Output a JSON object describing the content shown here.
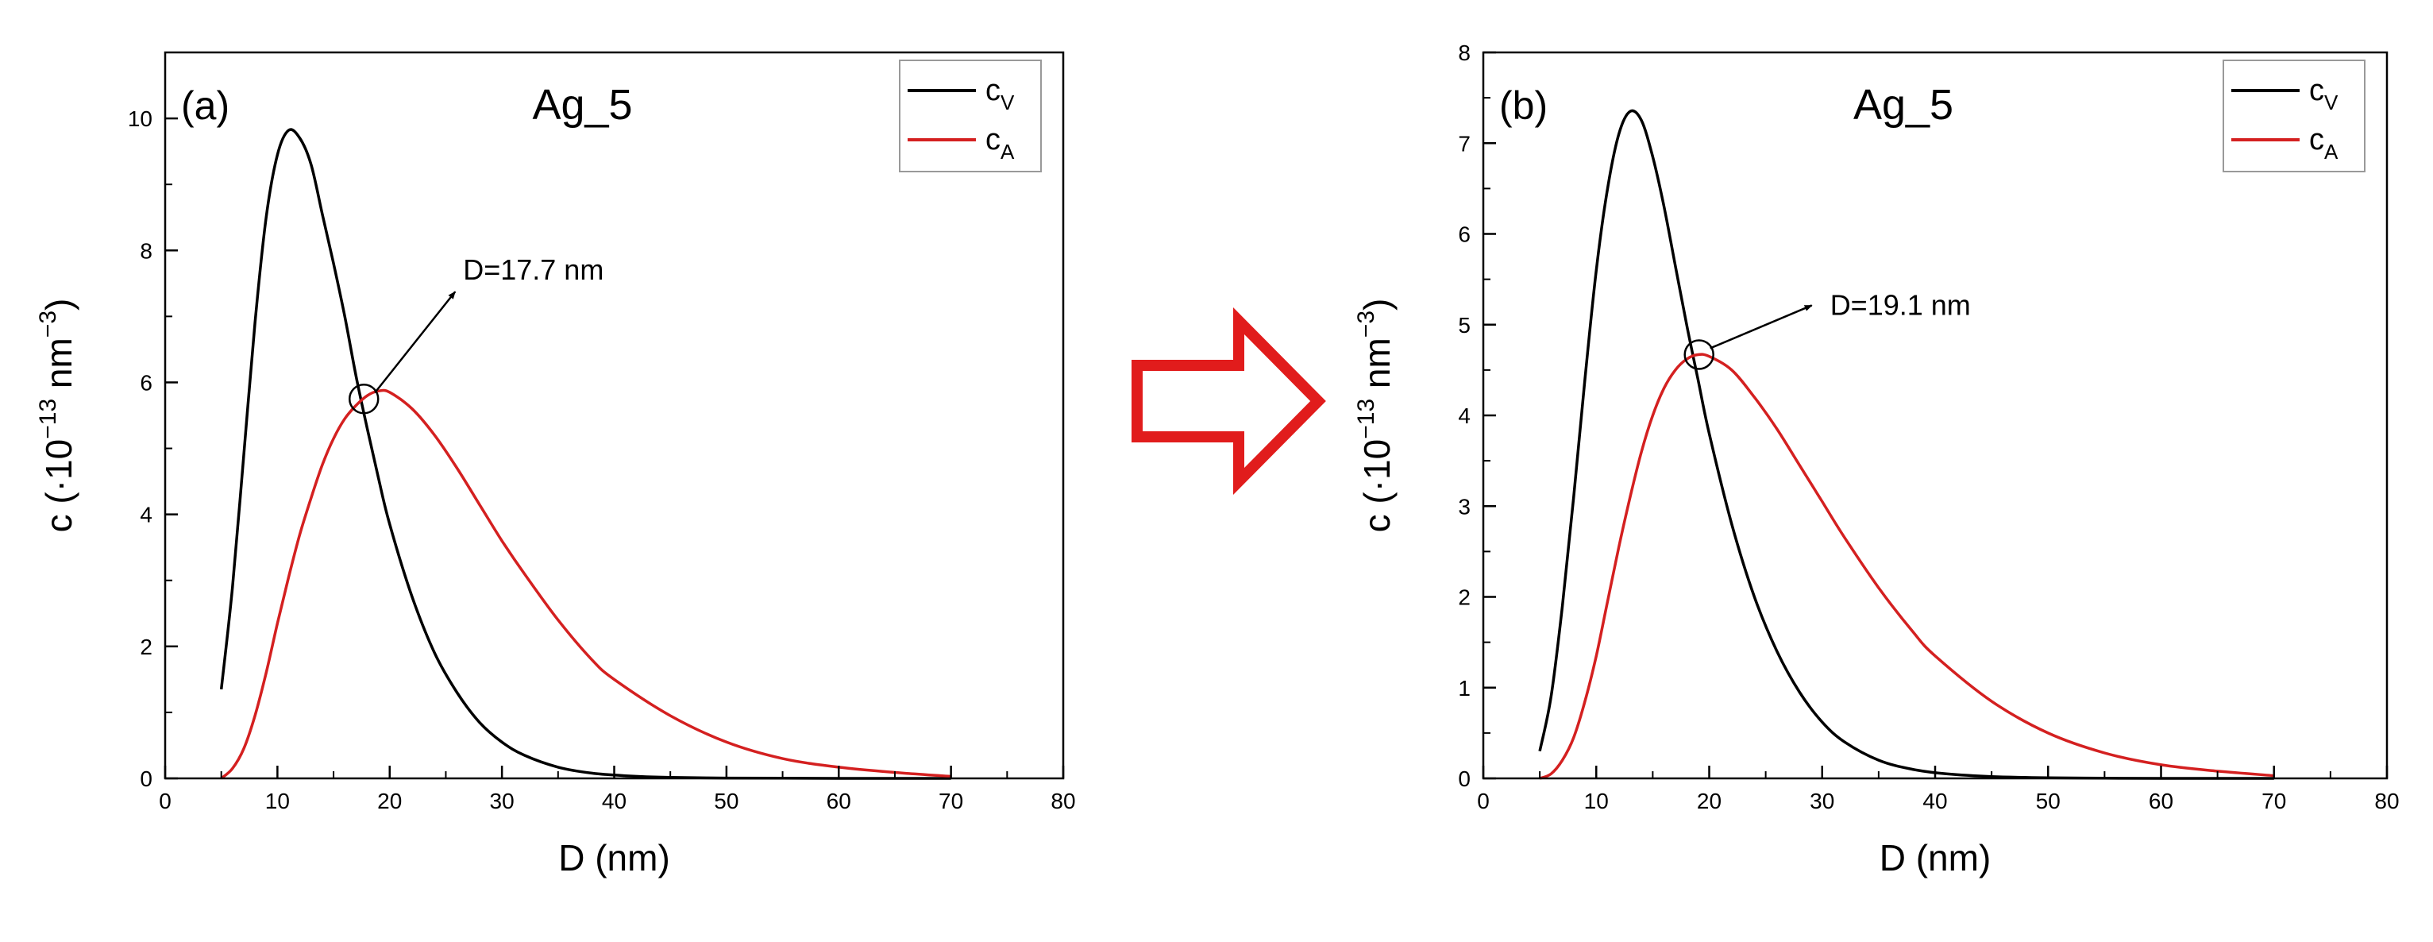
{
  "colors": {
    "cv": "#000000",
    "ca": "#d42020",
    "arrow": "#e11c1c",
    "axis": "#000000"
  },
  "transition_arrow": {
    "name": "right-arrow-icon"
  },
  "chart_data": [
    {
      "type": "line",
      "panel_label": "(a)",
      "title": "Ag_5",
      "xlabel": "D (nm)",
      "ylabel": {
        "prefix": "c (·10",
        "exp1": "−13",
        "mid": " nm",
        "exp2": "−3",
        "suffix": ")"
      },
      "xlim": [
        0,
        80
      ],
      "ylim": [
        0,
        11
      ],
      "xticks": [
        0,
        10,
        20,
        30,
        40,
        50,
        60,
        70,
        80
      ],
      "yticks": [
        0,
        2,
        4,
        6,
        8,
        10
      ],
      "legend": {
        "position": "top-right",
        "entries": [
          {
            "base": "c",
            "sub": "V",
            "series": 0
          },
          {
            "base": "c",
            "sub": "A",
            "series": 1
          }
        ]
      },
      "series": [
        {
          "name": "cV",
          "color": "#000000",
          "x": [
            5,
            6,
            7,
            8,
            9,
            10,
            11,
            12,
            13,
            14,
            15,
            16,
            17,
            18,
            19,
            20,
            22,
            24,
            26,
            28,
            30,
            32,
            35,
            38,
            41,
            45,
            50,
            55,
            60,
            65,
            70
          ],
          "y": [
            1.35,
            2.9,
            4.9,
            6.9,
            8.5,
            9.45,
            9.82,
            9.7,
            9.3,
            8.55,
            7.8,
            7.0,
            6.1,
            5.3,
            4.55,
            3.85,
            2.75,
            1.9,
            1.3,
            0.85,
            0.55,
            0.35,
            0.17,
            0.08,
            0.04,
            0.015,
            0.005,
            0.002,
            0,
            0,
            0
          ]
        },
        {
          "name": "cA",
          "color": "#d42020",
          "x": [
            5,
            6,
            7,
            8,
            9,
            10,
            11,
            12,
            13,
            14,
            15,
            16,
            17,
            18,
            19,
            20,
            22,
            24,
            26,
            28,
            30,
            32,
            35,
            38,
            40,
            45,
            50,
            55,
            60,
            65,
            70
          ],
          "y": [
            0,
            0.15,
            0.45,
            0.95,
            1.6,
            2.35,
            3.05,
            3.7,
            4.25,
            4.75,
            5.15,
            5.45,
            5.65,
            5.8,
            5.87,
            5.85,
            5.6,
            5.2,
            4.7,
            4.15,
            3.6,
            3.1,
            2.4,
            1.8,
            1.5,
            0.95,
            0.55,
            0.3,
            0.17,
            0.09,
            0.03
          ]
        }
      ],
      "annotation": {
        "text": "D=17.7 nm",
        "x": 17.7,
        "y": 5.75
      }
    },
    {
      "type": "line",
      "panel_label": "(b)",
      "title": "Ag_5",
      "xlabel": "D (nm)",
      "ylabel": {
        "prefix": "c (·10",
        "exp1": "−13",
        "mid": " nm",
        "exp2": "−3",
        "suffix": ")"
      },
      "xlim": [
        0,
        80
      ],
      "ylim": [
        0,
        8
      ],
      "xticks": [
        0,
        10,
        20,
        30,
        40,
        50,
        60,
        70,
        80
      ],
      "yticks": [
        0,
        1,
        2,
        3,
        4,
        5,
        6,
        7,
        8
      ],
      "legend": {
        "position": "top-right",
        "entries": [
          {
            "base": "c",
            "sub": "V",
            "series": 0
          },
          {
            "base": "c",
            "sub": "A",
            "series": 1
          }
        ]
      },
      "series": [
        {
          "name": "cV",
          "color": "#000000",
          "x": [
            5,
            6,
            7,
            8,
            9,
            10,
            11,
            12,
            13,
            14,
            15,
            16,
            17,
            18,
            19,
            20,
            22,
            24,
            26,
            28,
            30,
            32,
            35,
            38,
            41,
            45,
            50,
            55,
            60,
            65,
            70
          ],
          "y": [
            0.3,
            0.9,
            1.9,
            3.1,
            4.4,
            5.6,
            6.5,
            7.1,
            7.35,
            7.25,
            6.85,
            6.3,
            5.65,
            5.0,
            4.4,
            3.8,
            2.8,
            2.0,
            1.4,
            0.95,
            0.62,
            0.4,
            0.2,
            0.1,
            0.05,
            0.02,
            0.007,
            0.002,
            0,
            0,
            0
          ]
        },
        {
          "name": "cA",
          "color": "#d42020",
          "x": [
            5,
            6,
            7,
            8,
            9,
            10,
            11,
            12,
            13,
            14,
            15,
            16,
            17,
            18,
            19,
            20,
            22,
            24,
            26,
            28,
            30,
            32,
            35,
            38,
            40,
            45,
            50,
            55,
            60,
            65,
            70
          ],
          "y": [
            0,
            0.05,
            0.2,
            0.45,
            0.85,
            1.35,
            1.95,
            2.55,
            3.1,
            3.6,
            4.0,
            4.3,
            4.5,
            4.62,
            4.67,
            4.65,
            4.5,
            4.2,
            3.85,
            3.45,
            3.05,
            2.65,
            2.1,
            1.62,
            1.35,
            0.85,
            0.5,
            0.28,
            0.15,
            0.08,
            0.03
          ]
        }
      ],
      "annotation": {
        "text": "D=19.1 nm",
        "x": 19.1,
        "y": 4.67
      }
    }
  ]
}
